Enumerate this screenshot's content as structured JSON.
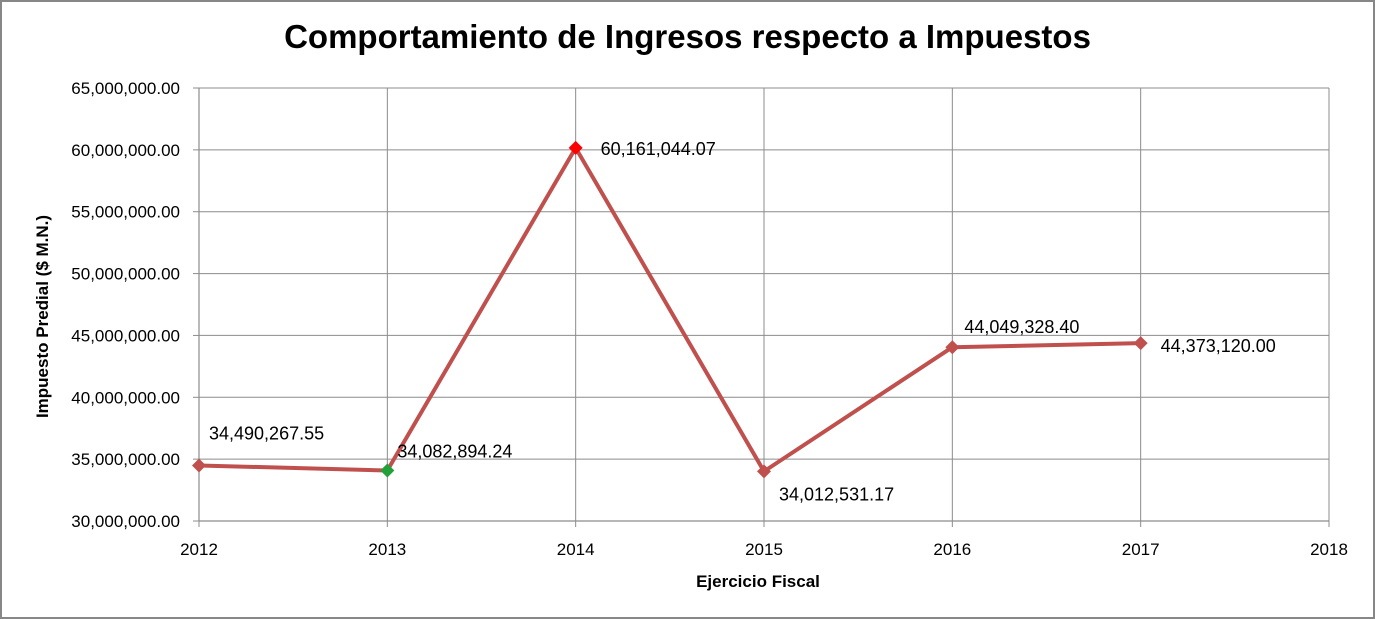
{
  "chart_data": {
    "type": "line",
    "title": "Comportamiento de Ingresos respecto a Impuestos",
    "xlabel": "Ejercicio Fiscal",
    "ylabel": "Impuesto Predial ($ M.N.)",
    "xlim": [
      2012,
      2018
    ],
    "ylim": [
      30000000,
      65000000
    ],
    "x_ticks": [
      "2012",
      "2013",
      "2014",
      "2015",
      "2016",
      "2017",
      "2018"
    ],
    "y_ticks": [
      "30,000,000.00",
      "35,000,000.00",
      "40,000,000.00",
      "45,000,000.00",
      "50,000,000.00",
      "55,000,000.00",
      "60,000,000.00",
      "65,000,000.00"
    ],
    "grid": true,
    "legend": "none",
    "line_color": "#c0504d",
    "series": [
      {
        "x": [
          2012,
          2013,
          2014,
          2015,
          2016,
          2017
        ],
        "values": [
          34490267.55,
          34082894.24,
          60161044.07,
          34012531.17,
          44049328.4,
          44373120.0
        ],
        "data_labels": [
          "34,490,267.55",
          "34,082,894.24",
          "60,161,044.07",
          "34,012,531.17",
          "44,049,328.40",
          "44,373,120.00"
        ],
        "marker_colors": [
          "#c0504d",
          "#22a13a",
          "#ff0000",
          "#c0504d",
          "#c0504d",
          "#c0504d"
        ]
      }
    ]
  }
}
